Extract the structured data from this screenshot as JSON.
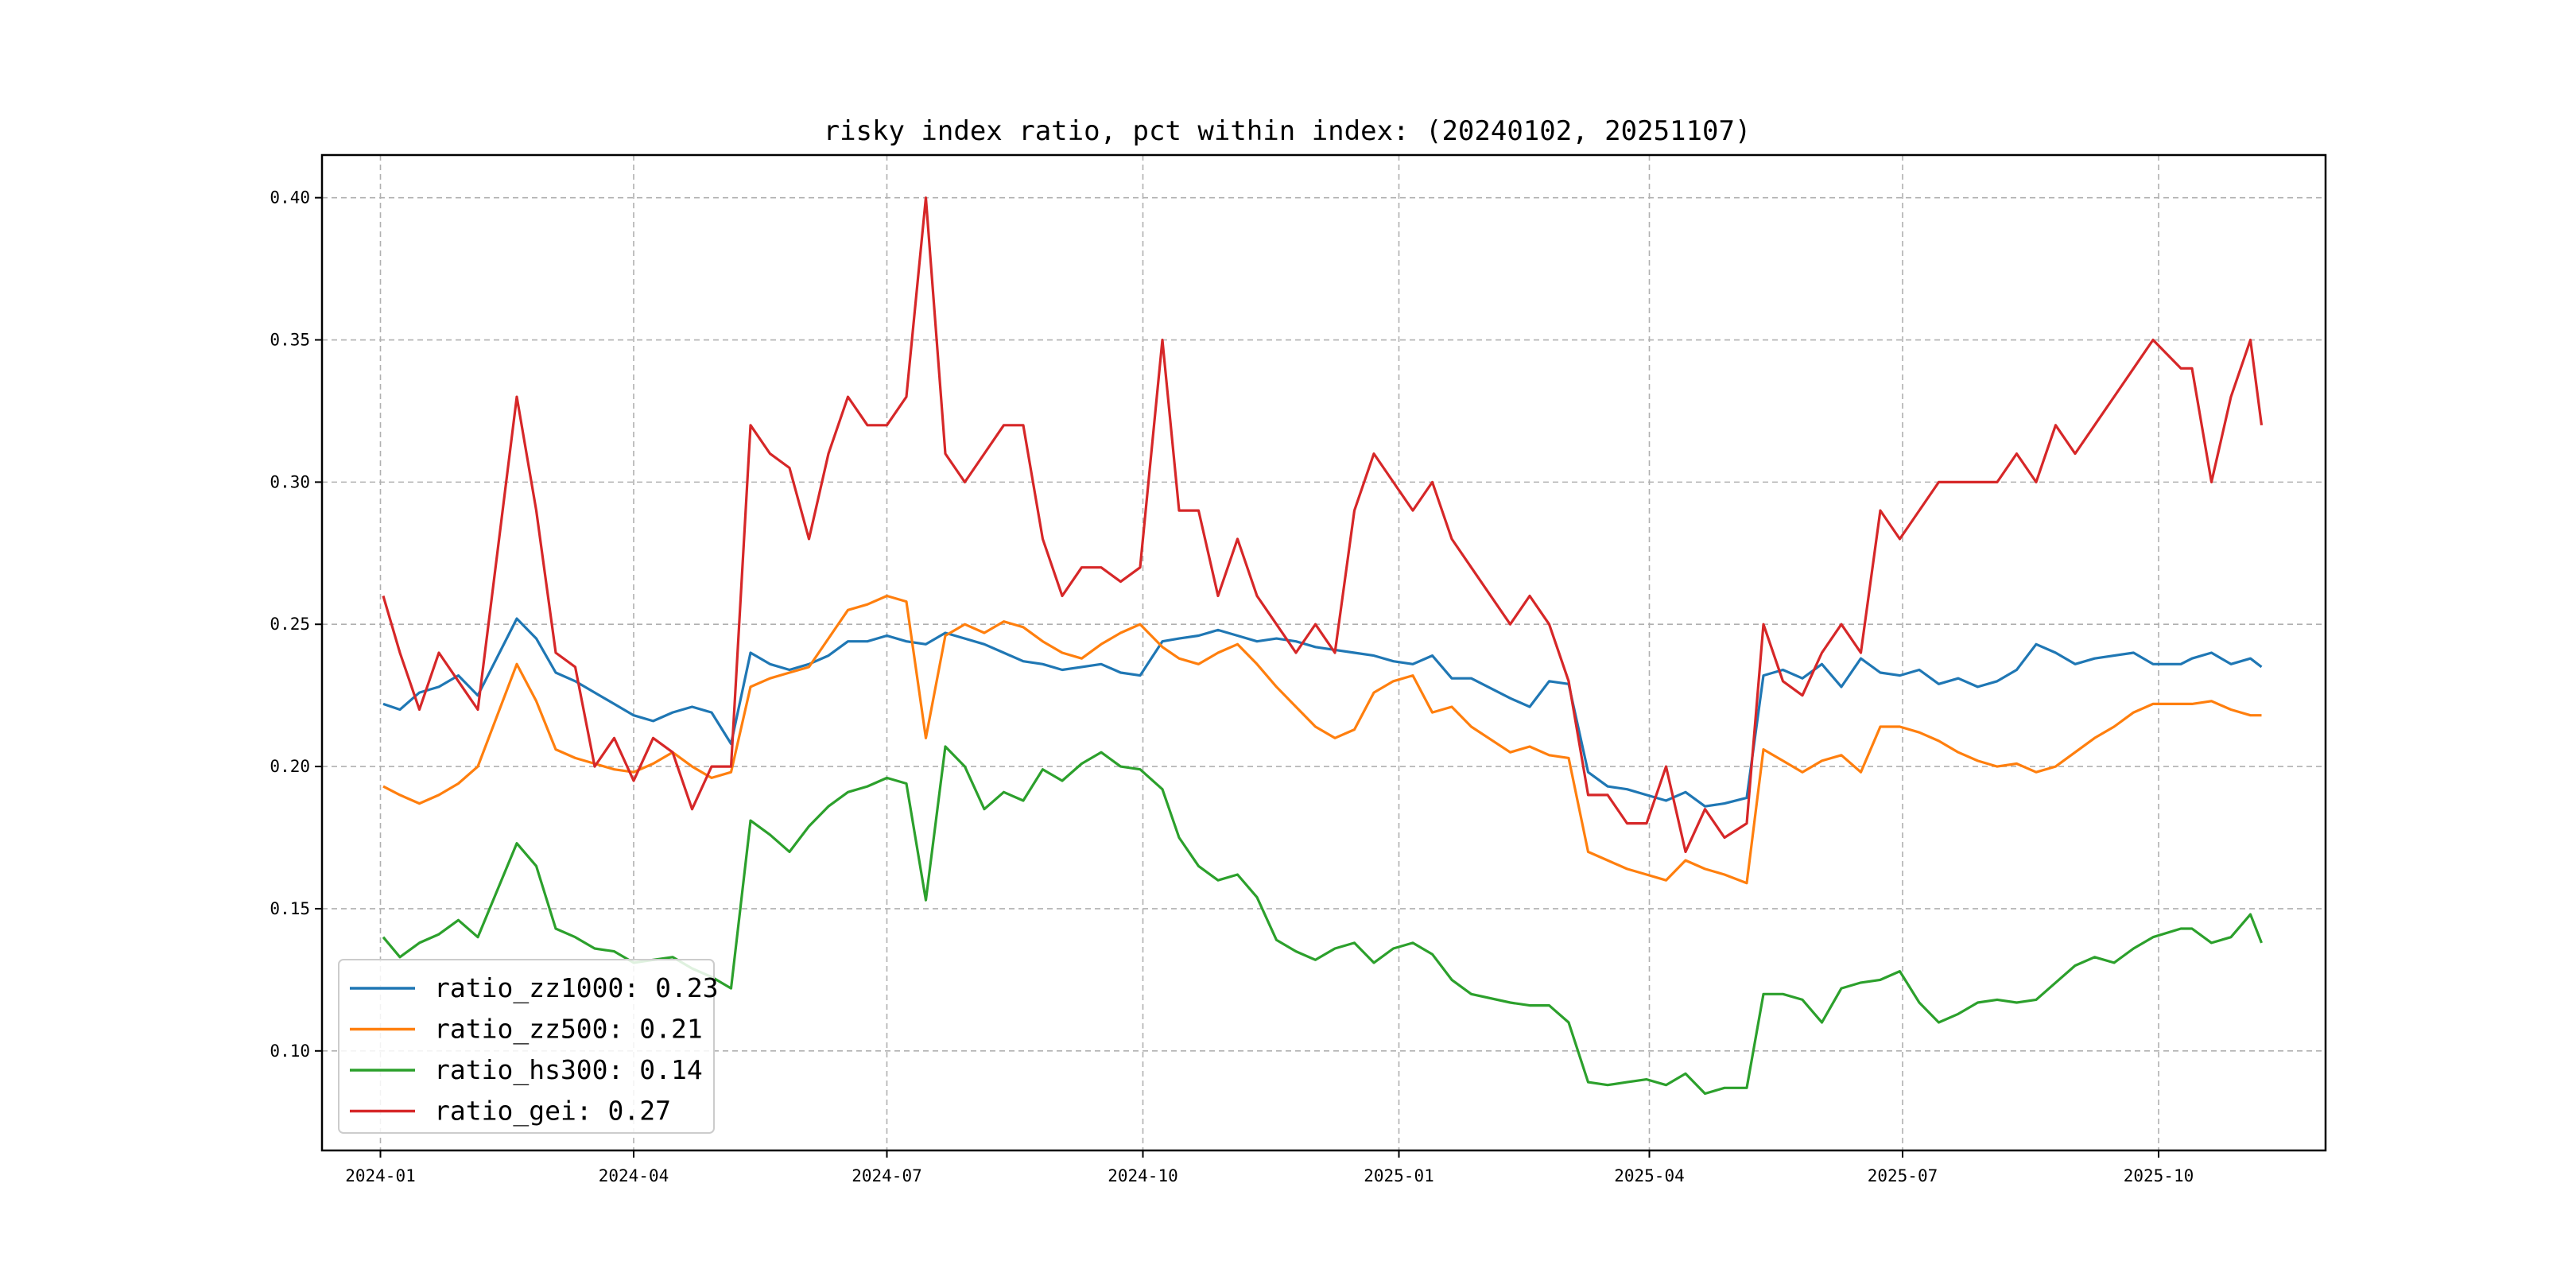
{
  "chart_data": {
    "type": "line",
    "title": "risky index ratio, pct within index: (20240102, 20251107)",
    "xlabel": "",
    "ylabel": "",
    "xlim": [
      "2023-12-11",
      "2025-11-30"
    ],
    "ylim": [
      0.065,
      0.415
    ],
    "grid": true,
    "legend_position": "lower-left",
    "x_ticks": [
      "2024-01",
      "2024-04",
      "2024-07",
      "2024-10",
      "2025-01",
      "2025-04",
      "2025-07",
      "2025-10"
    ],
    "y_ticks": [
      0.1,
      0.15,
      0.2,
      0.25,
      0.3,
      0.35,
      0.4
    ],
    "y_tick_labels": [
      "0.10",
      "0.15",
      "0.20",
      "0.25",
      "0.30",
      "0.35",
      "0.40"
    ],
    "series": [
      {
        "name": "ratio_zz1000",
        "legend_label": "ratio_zz1000: 0.23",
        "color": "#1f77b4",
        "x": [
          "2024-01-02",
          "2024-01-08",
          "2024-01-15",
          "2024-01-22",
          "2024-01-29",
          "2024-02-05",
          "2024-02-19",
          "2024-02-26",
          "2024-03-04",
          "2024-03-11",
          "2024-03-18",
          "2024-03-25",
          "2024-04-01",
          "2024-04-08",
          "2024-04-15",
          "2024-04-22",
          "2024-04-29",
          "2024-05-06",
          "2024-05-13",
          "2024-05-20",
          "2024-05-27",
          "2024-06-03",
          "2024-06-10",
          "2024-06-17",
          "2024-06-24",
          "2024-07-01",
          "2024-07-08",
          "2024-07-15",
          "2024-07-22",
          "2024-07-29",
          "2024-08-05",
          "2024-08-12",
          "2024-08-19",
          "2024-08-26",
          "2024-09-02",
          "2024-09-09",
          "2024-09-16",
          "2024-09-23",
          "2024-09-30",
          "2024-10-08",
          "2024-10-14",
          "2024-10-21",
          "2024-10-28",
          "2024-11-04",
          "2024-11-11",
          "2024-11-18",
          "2024-11-25",
          "2024-12-02",
          "2024-12-09",
          "2024-12-16",
          "2024-12-23",
          "2024-12-30",
          "2025-01-06",
          "2025-01-13",
          "2025-01-20",
          "2025-01-27",
          "2025-02-10",
          "2025-02-17",
          "2025-02-24",
          "2025-03-03",
          "2025-03-10",
          "2025-03-17",
          "2025-03-24",
          "2025-03-31",
          "2025-04-07",
          "2025-04-14",
          "2025-04-21",
          "2025-04-28",
          "2025-05-06",
          "2025-05-12",
          "2025-05-19",
          "2025-05-26",
          "2025-06-02",
          "2025-06-09",
          "2025-06-16",
          "2025-06-23",
          "2025-06-30",
          "2025-07-07",
          "2025-07-14",
          "2025-07-21",
          "2025-07-28",
          "2025-08-04",
          "2025-08-11",
          "2025-08-18",
          "2025-08-25",
          "2025-09-01",
          "2025-09-08",
          "2025-09-15",
          "2025-09-22",
          "2025-09-29",
          "2025-10-09",
          "2025-10-13",
          "2025-10-20",
          "2025-10-27",
          "2025-11-03",
          "2025-11-07"
        ],
        "y": [
          0.222,
          0.22,
          0.226,
          0.228,
          0.232,
          0.225,
          0.252,
          0.245,
          0.233,
          0.23,
          0.226,
          0.222,
          0.218,
          0.216,
          0.219,
          0.221,
          0.219,
          0.208,
          0.24,
          0.236,
          0.234,
          0.236,
          0.239,
          0.244,
          0.244,
          0.246,
          0.244,
          0.243,
          0.247,
          0.245,
          0.243,
          0.24,
          0.237,
          0.236,
          0.234,
          0.235,
          0.236,
          0.233,
          0.232,
          0.244,
          0.245,
          0.246,
          0.248,
          0.246,
          0.244,
          0.245,
          0.244,
          0.242,
          0.241,
          0.24,
          0.239,
          0.237,
          0.236,
          0.239,
          0.231,
          0.231,
          0.224,
          0.221,
          0.23,
          0.229,
          0.198,
          0.193,
          0.192,
          0.19,
          0.188,
          0.191,
          0.186,
          0.187,
          0.189,
          0.232,
          0.234,
          0.231,
          0.236,
          0.228,
          0.238,
          0.233,
          0.232,
          0.234,
          0.229,
          0.231,
          0.228,
          0.23,
          0.234,
          0.243,
          0.24,
          0.236,
          0.238,
          0.239,
          0.24,
          0.236,
          0.236,
          0.238,
          0.24,
          0.236,
          0.238,
          0.235
        ]
      },
      {
        "name": "ratio_zz500",
        "legend_label": "ratio_zz500: 0.21",
        "color": "#ff7f0e",
        "x": [
          "2024-01-02",
          "2024-01-08",
          "2024-01-15",
          "2024-01-22",
          "2024-01-29",
          "2024-02-05",
          "2024-02-19",
          "2024-02-26",
          "2024-03-04",
          "2024-03-11",
          "2024-03-18",
          "2024-03-25",
          "2024-04-01",
          "2024-04-08",
          "2024-04-15",
          "2024-04-22",
          "2024-04-29",
          "2024-05-06",
          "2024-05-13",
          "2024-05-20",
          "2024-05-27",
          "2024-06-03",
          "2024-06-10",
          "2024-06-17",
          "2024-06-24",
          "2024-07-01",
          "2024-07-08",
          "2024-07-15",
          "2024-07-22",
          "2024-07-29",
          "2024-08-05",
          "2024-08-12",
          "2024-08-19",
          "2024-08-26",
          "2024-09-02",
          "2024-09-09",
          "2024-09-16",
          "2024-09-23",
          "2024-09-30",
          "2024-10-08",
          "2024-10-14",
          "2024-10-21",
          "2024-10-28",
          "2024-11-04",
          "2024-11-11",
          "2024-11-18",
          "2024-11-25",
          "2024-12-02",
          "2024-12-09",
          "2024-12-16",
          "2024-12-23",
          "2024-12-30",
          "2025-01-06",
          "2025-01-13",
          "2025-01-20",
          "2025-01-27",
          "2025-02-10",
          "2025-02-17",
          "2025-02-24",
          "2025-03-03",
          "2025-03-10",
          "2025-03-17",
          "2025-03-24",
          "2025-03-31",
          "2025-04-07",
          "2025-04-14",
          "2025-04-21",
          "2025-04-28",
          "2025-05-06",
          "2025-05-12",
          "2025-05-19",
          "2025-05-26",
          "2025-06-02",
          "2025-06-09",
          "2025-06-16",
          "2025-06-23",
          "2025-06-30",
          "2025-07-07",
          "2025-07-14",
          "2025-07-21",
          "2025-07-28",
          "2025-08-04",
          "2025-08-11",
          "2025-08-18",
          "2025-08-25",
          "2025-09-01",
          "2025-09-08",
          "2025-09-15",
          "2025-09-22",
          "2025-09-29",
          "2025-10-09",
          "2025-10-13",
          "2025-10-20",
          "2025-10-27",
          "2025-11-03",
          "2025-11-07"
        ],
        "y": [
          0.193,
          0.19,
          0.187,
          0.19,
          0.194,
          0.2,
          0.236,
          0.223,
          0.206,
          0.203,
          0.201,
          0.199,
          0.198,
          0.201,
          0.205,
          0.2,
          0.196,
          0.198,
          0.228,
          0.231,
          0.233,
          0.235,
          0.245,
          0.255,
          0.257,
          0.26,
          0.258,
          0.21,
          0.246,
          0.25,
          0.247,
          0.251,
          0.249,
          0.244,
          0.24,
          0.238,
          0.243,
          0.247,
          0.25,
          0.242,
          0.238,
          0.236,
          0.24,
          0.243,
          0.236,
          0.228,
          0.221,
          0.214,
          0.21,
          0.213,
          0.226,
          0.23,
          0.232,
          0.219,
          0.221,
          0.214,
          0.205,
          0.207,
          0.204,
          0.203,
          0.17,
          0.167,
          0.164,
          0.162,
          0.16,
          0.167,
          0.164,
          0.162,
          0.159,
          0.206,
          0.202,
          0.198,
          0.202,
          0.204,
          0.198,
          0.214,
          0.214,
          0.212,
          0.209,
          0.205,
          0.202,
          0.2,
          0.201,
          0.198,
          0.2,
          0.205,
          0.21,
          0.214,
          0.219,
          0.222,
          0.222,
          0.222,
          0.223,
          0.22,
          0.218,
          0.218
        ]
      },
      {
        "name": "ratio_hs300",
        "legend_label": "ratio_hs300: 0.14",
        "color": "#2ca02c",
        "x": [
          "2024-01-02",
          "2024-01-08",
          "2024-01-15",
          "2024-01-22",
          "2024-01-29",
          "2024-02-05",
          "2024-02-19",
          "2024-02-26",
          "2024-03-04",
          "2024-03-11",
          "2024-03-18",
          "2024-03-25",
          "2024-04-01",
          "2024-04-08",
          "2024-04-15",
          "2024-04-22",
          "2024-04-29",
          "2024-05-06",
          "2024-05-13",
          "2024-05-20",
          "2024-05-27",
          "2024-06-03",
          "2024-06-10",
          "2024-06-17",
          "2024-06-24",
          "2024-07-01",
          "2024-07-08",
          "2024-07-15",
          "2024-07-22",
          "2024-07-29",
          "2024-08-05",
          "2024-08-12",
          "2024-08-19",
          "2024-08-26",
          "2024-09-02",
          "2024-09-09",
          "2024-09-16",
          "2024-09-23",
          "2024-09-30",
          "2024-10-08",
          "2024-10-14",
          "2024-10-21",
          "2024-10-28",
          "2024-11-04",
          "2024-11-11",
          "2024-11-18",
          "2024-11-25",
          "2024-12-02",
          "2024-12-09",
          "2024-12-16",
          "2024-12-23",
          "2024-12-30",
          "2025-01-06",
          "2025-01-13",
          "2025-01-20",
          "2025-01-27",
          "2025-02-10",
          "2025-02-17",
          "2025-02-24",
          "2025-03-03",
          "2025-03-10",
          "2025-03-17",
          "2025-03-24",
          "2025-03-31",
          "2025-04-07",
          "2025-04-14",
          "2025-04-21",
          "2025-04-28",
          "2025-05-06",
          "2025-05-12",
          "2025-05-19",
          "2025-05-26",
          "2025-06-02",
          "2025-06-09",
          "2025-06-16",
          "2025-06-23",
          "2025-06-30",
          "2025-07-07",
          "2025-07-14",
          "2025-07-21",
          "2025-07-28",
          "2025-08-04",
          "2025-08-11",
          "2025-08-18",
          "2025-08-25",
          "2025-09-01",
          "2025-09-08",
          "2025-09-15",
          "2025-09-22",
          "2025-09-29",
          "2025-10-09",
          "2025-10-13",
          "2025-10-20",
          "2025-10-27",
          "2025-11-03",
          "2025-11-07"
        ],
        "y": [
          0.14,
          0.133,
          0.138,
          0.141,
          0.146,
          0.14,
          0.173,
          0.165,
          0.143,
          0.14,
          0.136,
          0.135,
          0.131,
          0.132,
          0.133,
          0.129,
          0.126,
          0.122,
          0.181,
          0.176,
          0.17,
          0.179,
          0.186,
          0.191,
          0.193,
          0.196,
          0.194,
          0.153,
          0.207,
          0.2,
          0.185,
          0.191,
          0.188,
          0.199,
          0.195,
          0.201,
          0.205,
          0.2,
          0.199,
          0.192,
          0.175,
          0.165,
          0.16,
          0.162,
          0.154,
          0.139,
          0.135,
          0.132,
          0.136,
          0.138,
          0.131,
          0.136,
          0.138,
          0.134,
          0.125,
          0.12,
          0.117,
          0.116,
          0.116,
          0.11,
          0.089,
          0.088,
          0.089,
          0.09,
          0.088,
          0.092,
          0.085,
          0.087,
          0.087,
          0.12,
          0.12,
          0.118,
          0.11,
          0.122,
          0.124,
          0.125,
          0.128,
          0.117,
          0.11,
          0.113,
          0.117,
          0.118,
          0.117,
          0.118,
          0.124,
          0.13,
          0.133,
          0.131,
          0.136,
          0.14,
          0.143,
          0.143,
          0.138,
          0.14,
          0.148,
          0.138
        ]
      },
      {
        "name": "ratio_gei",
        "legend_label": "ratio_gei: 0.27",
        "color": "#d62728",
        "x": [
          "2024-01-02",
          "2024-01-08",
          "2024-01-15",
          "2024-01-22",
          "2024-01-29",
          "2024-02-05",
          "2024-02-19",
          "2024-02-26",
          "2024-03-04",
          "2024-03-11",
          "2024-03-18",
          "2024-03-25",
          "2024-04-01",
          "2024-04-08",
          "2024-04-15",
          "2024-04-22",
          "2024-04-29",
          "2024-05-06",
          "2024-05-13",
          "2024-05-20",
          "2024-05-27",
          "2024-06-03",
          "2024-06-10",
          "2024-06-17",
          "2024-06-24",
          "2024-07-01",
          "2024-07-08",
          "2024-07-15",
          "2024-07-22",
          "2024-07-29",
          "2024-08-05",
          "2024-08-12",
          "2024-08-19",
          "2024-08-26",
          "2024-09-02",
          "2024-09-09",
          "2024-09-16",
          "2024-09-23",
          "2024-09-30",
          "2024-10-08",
          "2024-10-14",
          "2024-10-21",
          "2024-10-28",
          "2024-11-04",
          "2024-11-11",
          "2024-11-18",
          "2024-11-25",
          "2024-12-02",
          "2024-12-09",
          "2024-12-16",
          "2024-12-23",
          "2024-12-30",
          "2025-01-06",
          "2025-01-13",
          "2025-01-20",
          "2025-01-27",
          "2025-02-10",
          "2025-02-17",
          "2025-02-24",
          "2025-03-03",
          "2025-03-10",
          "2025-03-17",
          "2025-03-24",
          "2025-03-31",
          "2025-04-07",
          "2025-04-14",
          "2025-04-21",
          "2025-04-28",
          "2025-05-06",
          "2025-05-12",
          "2025-05-19",
          "2025-05-26",
          "2025-06-02",
          "2025-06-09",
          "2025-06-16",
          "2025-06-23",
          "2025-06-30",
          "2025-07-07",
          "2025-07-14",
          "2025-07-21",
          "2025-07-28",
          "2025-08-04",
          "2025-08-11",
          "2025-08-18",
          "2025-08-25",
          "2025-09-01",
          "2025-09-08",
          "2025-09-15",
          "2025-09-22",
          "2025-09-29",
          "2025-10-09",
          "2025-10-13",
          "2025-10-20",
          "2025-10-27",
          "2025-11-03",
          "2025-11-07"
        ],
        "y": [
          0.26,
          0.24,
          0.22,
          0.24,
          0.23,
          0.22,
          0.33,
          0.29,
          0.24,
          0.235,
          0.2,
          0.21,
          0.195,
          0.21,
          0.205,
          0.185,
          0.2,
          0.2,
          0.32,
          0.31,
          0.305,
          0.28,
          0.31,
          0.33,
          0.32,
          0.32,
          0.33,
          0.4,
          0.31,
          0.3,
          0.31,
          0.32,
          0.32,
          0.28,
          0.26,
          0.27,
          0.27,
          0.265,
          0.27,
          0.35,
          0.29,
          0.29,
          0.26,
          0.28,
          0.26,
          0.25,
          0.24,
          0.25,
          0.24,
          0.29,
          0.31,
          0.3,
          0.29,
          0.3,
          0.28,
          0.27,
          0.25,
          0.26,
          0.25,
          0.23,
          0.19,
          0.19,
          0.18,
          0.18,
          0.2,
          0.17,
          0.185,
          0.175,
          0.18,
          0.25,
          0.23,
          0.225,
          0.24,
          0.25,
          0.24,
          0.29,
          0.28,
          0.29,
          0.3,
          0.3,
          0.3,
          0.3,
          0.31,
          0.3,
          0.32,
          0.31,
          0.32,
          0.33,
          0.34,
          0.35,
          0.34,
          0.34,
          0.3,
          0.33,
          0.35,
          0.32
        ]
      }
    ]
  }
}
